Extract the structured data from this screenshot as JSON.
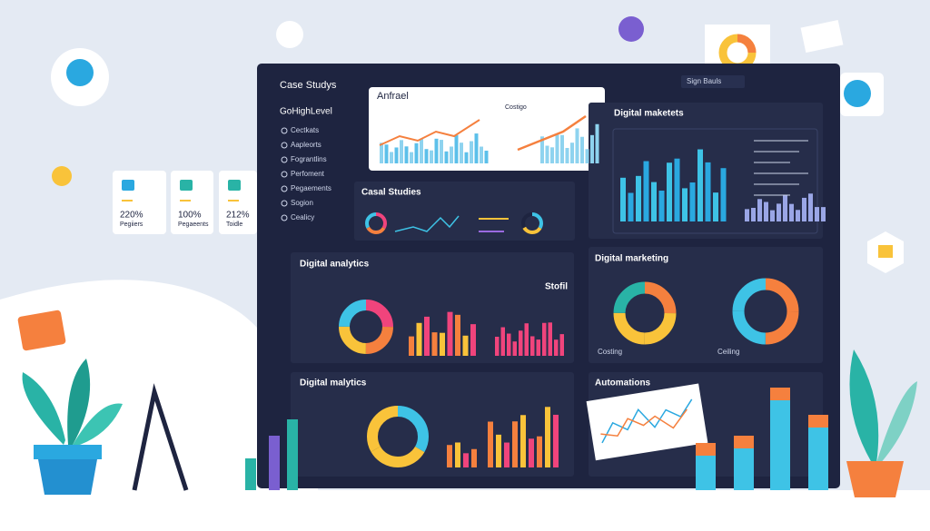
{
  "dashboard": {
    "title": "Case Studys",
    "brand": "GoHighLevel",
    "search": "Sign Bauls",
    "nav": [
      "Cectkats",
      "Aapleorts",
      "Fograntlins",
      "Perfoment",
      "Pegaements",
      "Sogion",
      "Cealicy"
    ]
  },
  "stat_cards": [
    {
      "value": "220%",
      "label": "Pegiiers"
    },
    {
      "value": "100%",
      "label": "Pegaeents"
    },
    {
      "value": "212%",
      "label": "Toidle"
    }
  ],
  "panels": {
    "top_card": "Anfrael",
    "top_card_sub": "Costigo",
    "digital_top": "Digital maketets",
    "case_studies": "Casal Studies",
    "analytics": "Digital analytics",
    "marketing": "Digital marketing",
    "malytics": "Digital malytics",
    "automations": "Automations",
    "stofil": "Stofil"
  },
  "donut_labels": [
    "Costing",
    "Ceiling"
  ]
}
